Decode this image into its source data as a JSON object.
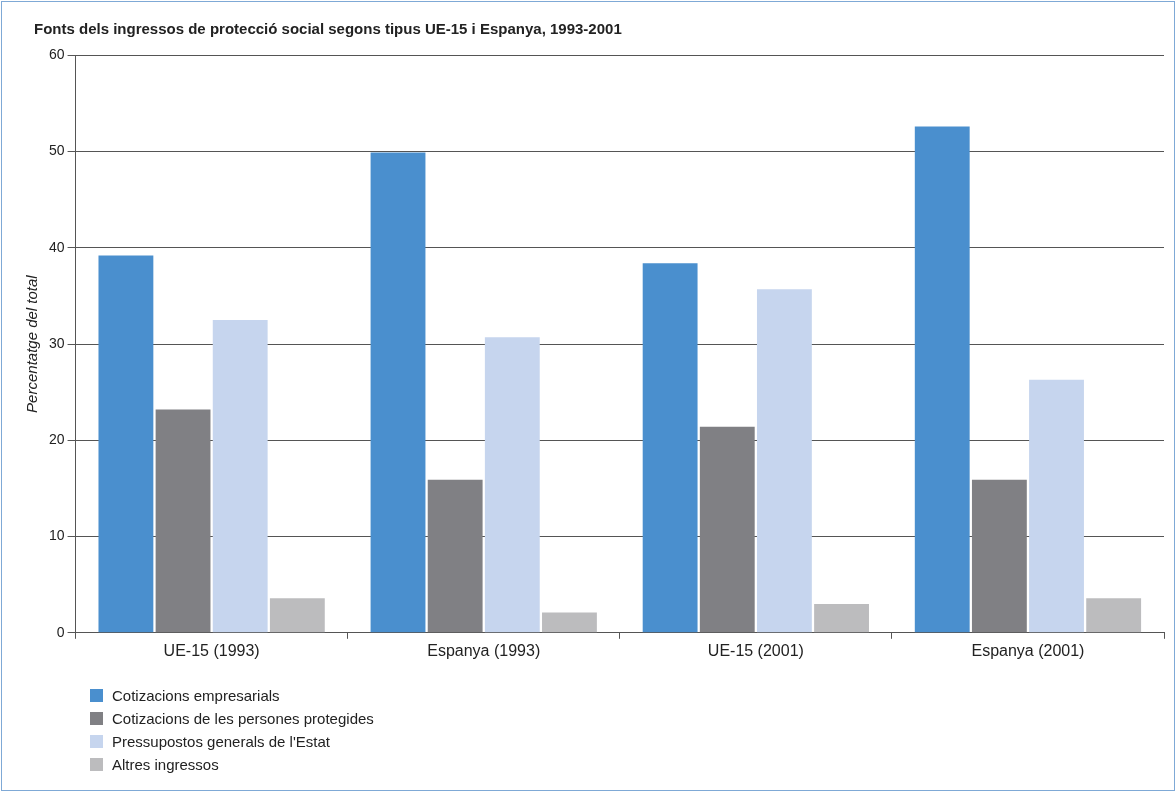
{
  "chart_data": {
    "type": "bar",
    "title": "Fonts dels ingressos de protecció social segons tipus UE-15 i Espanya, 1993-2001",
    "ylabel": "Percentatge del total",
    "categories": [
      "UE-15 (1993)",
      "Espanya (1993)",
      "UE-15 (2001)",
      "Espanya (2001)"
    ],
    "series": [
      {
        "name": "Cotizacions empresarials",
        "color": "#4a8fce",
        "values": [
          39.2,
          49.9,
          38.4,
          52.6
        ]
      },
      {
        "name": "Cotizacions de les persones protegides",
        "color": "#808084",
        "values": [
          23.2,
          15.9,
          21.4,
          15.9
        ]
      },
      {
        "name": "Pressupostos generals de l'Estat",
        "color": "#c6d5ee",
        "values": [
          32.5,
          30.7,
          35.7,
          26.3
        ]
      },
      {
        "name": "Altres ingressos",
        "color": "#bcbcbe",
        "values": [
          3.6,
          2.1,
          3.0,
          3.6
        ]
      }
    ],
    "ylim": [
      0,
      60
    ],
    "yticks": [
      0,
      10,
      20,
      30,
      40,
      50,
      60
    ],
    "grid": "y",
    "legend": "bottom left"
  }
}
